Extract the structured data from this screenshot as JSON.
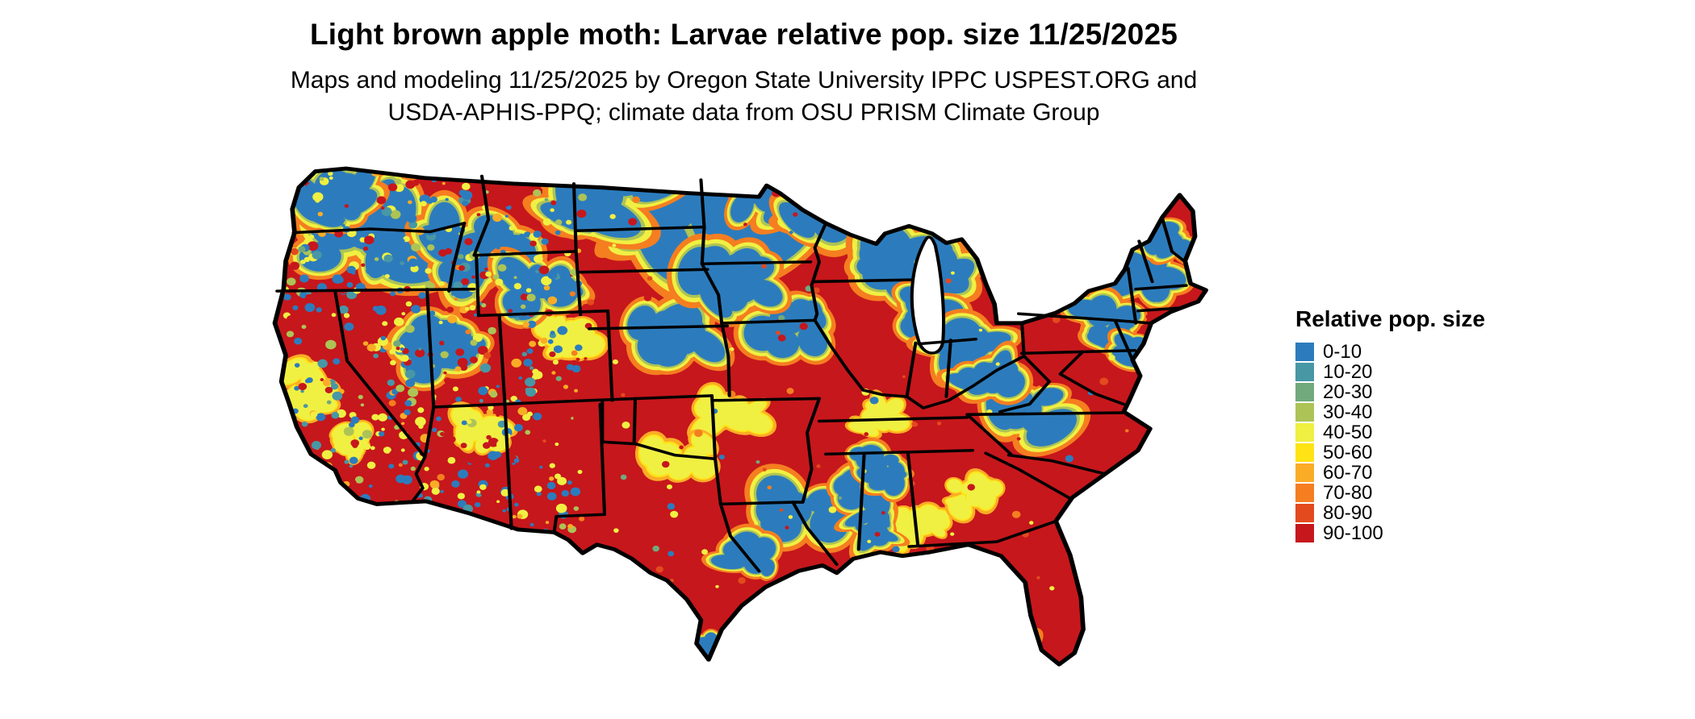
{
  "header": {
    "title": "Light brown apple moth: Larvae relative pop. size 11/25/2025",
    "subtitle_line1": "Maps and modeling 11/25/2025 by Oregon State University IPPC USPEST.ORG and",
    "subtitle_line2": "USDA-APHIS-PPQ; climate data from OSU PRISM Climate Group"
  },
  "map": {
    "region": "Continental United States",
    "type": "raster-choropleth",
    "border_color": "#000000",
    "water_color": "#ffffff",
    "dominant_color": "#c5161d"
  },
  "legend": {
    "title": "Relative pop. size",
    "items": [
      {
        "label": "0-10",
        "color": "#2c7cbd"
      },
      {
        "label": "10-20",
        "color": "#4897a5"
      },
      {
        "label": "20-30",
        "color": "#72a97c"
      },
      {
        "label": "30-40",
        "color": "#adc356"
      },
      {
        "label": "40-50",
        "color": "#f0f042"
      },
      {
        "label": "50-60",
        "color": "#ffe315"
      },
      {
        "label": "60-70",
        "color": "#fbac26"
      },
      {
        "label": "70-80",
        "color": "#f57e20"
      },
      {
        "label": "80-90",
        "color": "#e34a1e"
      },
      {
        "label": "90-100",
        "color": "#c6171c"
      }
    ]
  }
}
